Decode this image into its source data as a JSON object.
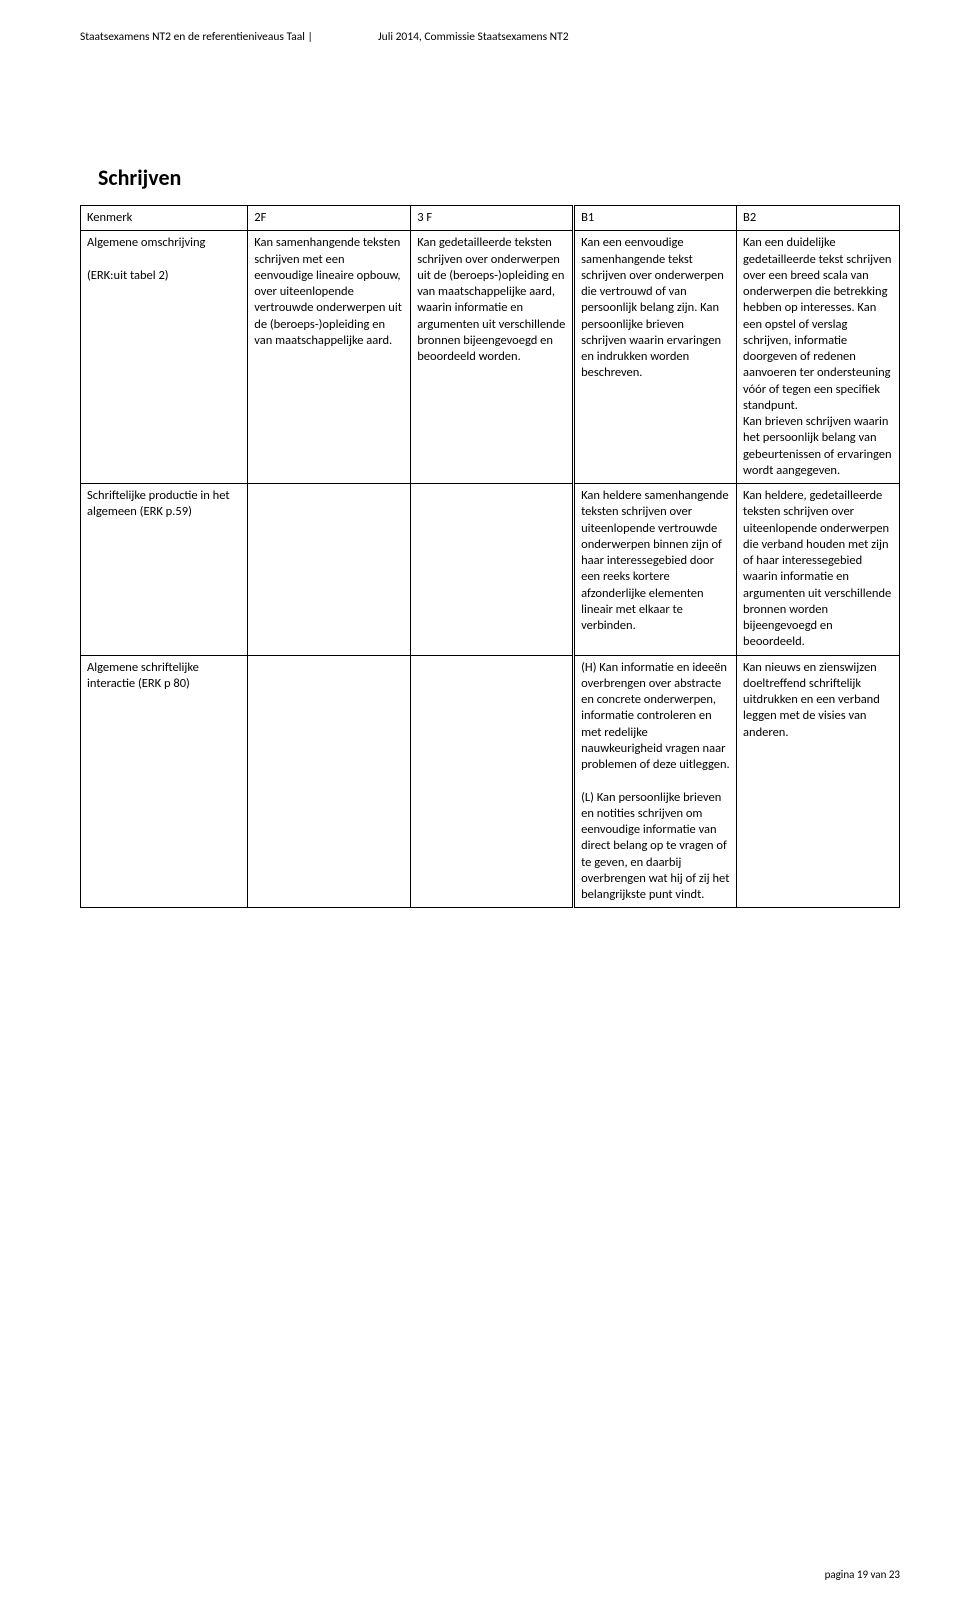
{
  "header": {
    "left": "Staatsexamens NT2 en de referentieniveaus Taal  |",
    "right": "Juli 2014, Commissie Staatsexamens NT2"
  },
  "section_title": "Schrijven",
  "table": {
    "head": {
      "kenmerk": "Kenmerk",
      "c2f": "2F",
      "c3f": "3 F",
      "cb1": "B1",
      "cb2": "B2"
    },
    "rows": [
      {
        "kenmerk": "Algemene omschrijving\n\n(ERK:uit tabel 2)",
        "c2f": "Kan samenhangende teksten schrijven met een eenvoudige lineaire opbouw, over uiteenlopende vertrouwde onderwerpen uit de (beroeps-)opleiding en van maatschappelijke aard.",
        "c3f": "Kan gedetailleerde teksten schrijven over onderwerpen uit de (beroeps-)opleiding en van maatschappelijke aard, waarin informatie en argumenten uit verschillende bronnen bijeengevoegd en beoordeeld worden.",
        "cb1": "Kan een eenvoudige samenhangende tekst schrijven over onderwerpen die vertrouwd of van persoonlijk belang zijn. Kan persoonlijke brieven schrijven waarin ervaringen en indrukken worden beschreven.",
        "cb2": "Kan een duidelijke gedetailleerde tekst schrijven over een breed scala van onderwerpen die betrekking hebben op interesses. Kan een opstel of verslag schrijven, informatie doorgeven of redenen aanvoeren ter ondersteuning vóór of tegen een specifiek standpunt.\nKan brieven schrijven waarin het persoonlijk belang van gebeurtenissen of ervaringen wordt aangegeven."
      },
      {
        "kenmerk": "Schriftelijke productie in het algemeen (ERK p.59)",
        "c2f": "",
        "c3f": "",
        "cb1": "Kan heldere samenhangende teksten schrijven over uiteenlopende vertrouwde onderwerpen binnen zijn of haar interessegebied door een reeks kortere afzonderlijke elementen lineair met elkaar te verbinden.",
        "cb2": "Kan heldere, gedetailleerde teksten schrijven over uiteenlopende onderwerpen die verband houden met zijn of haar interessegebied waarin informatie en argumenten uit verschillende bronnen worden bijeengevoegd en beoordeeld."
      },
      {
        "kenmerk": "Algemene schriftelijke interactie (ERK p 80)",
        "c2f": "",
        "c3f": "",
        "cb1": "(H) Kan informatie en ideeën overbrengen over abstracte en concrete onderwerpen, informatie controleren en met redelijke nauwkeurigheid vragen naar problemen of deze uitleggen.\n\n(L) Kan persoonlijke brieven en notities schrijven om eenvoudige informatie van direct belang op te vragen of te geven, en daarbij overbrengen wat hij of zij het belangrijkste punt vindt.",
        "cb2": "Kan nieuws en zienswijzen doeltreffend schriftelijk uitdrukken en een verband leggen met de visies van anderen."
      }
    ]
  },
  "footer": "pagina 19 van 23"
}
